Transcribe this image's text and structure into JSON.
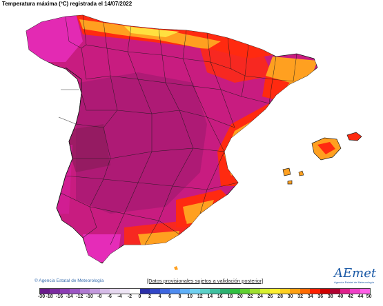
{
  "title": "Temperatura máxima (ºC) registrada el 14/07/2022",
  "copyright": "© Agencia Estatal de Meteorología",
  "disclaimer": "[Datos provisionales sujetos a validación posterior]",
  "logo": {
    "brand": "AEmet",
    "subtitle": "Agencia Estatal de Meteorología"
  },
  "legend": {
    "labels": [
      "-30",
      "-18",
      "-16",
      "-14",
      "-12",
      "-10",
      "-8",
      "-6",
      "-4",
      "-2",
      "0",
      "2",
      "4",
      "6",
      "8",
      "10",
      "12",
      "14",
      "16",
      "18",
      "20",
      "22",
      "24",
      "26",
      "28",
      "30",
      "32",
      "34",
      "36",
      "38",
      "40",
      "42",
      "44",
      "50"
    ],
    "colors": [
      "#6a1a8c",
      "#7b2aa0",
      "#8c3cb4",
      "#9c55c4",
      "#b07ad2",
      "#c49ade",
      "#d6bce8",
      "#e6d8f0",
      "#efe6f6",
      "#ffffff",
      "#2b2fa8",
      "#3146c8",
      "#3d66e0",
      "#4f8cf0",
      "#5fb0f8",
      "#70d0f0",
      "#5cd0c8",
      "#40c0a0",
      "#2cb070",
      "#30c040",
      "#60d030",
      "#a0e030",
      "#d8f030",
      "#fff030",
      "#ffd020",
      "#ffa010",
      "#ff6a00",
      "#ff2000",
      "#d00000",
      "#b00030",
      "#e0208c",
      "#f040c8",
      "#ff60e8"
    ]
  },
  "map_colors": {
    "interior": "#b8207a",
    "hot_interior": "#d6187a",
    "magenta": "#e828c8",
    "red": "#ff2a10",
    "orange": "#ffa020",
    "yellow": "#ffe040",
    "border": "#1a1a1a"
  }
}
